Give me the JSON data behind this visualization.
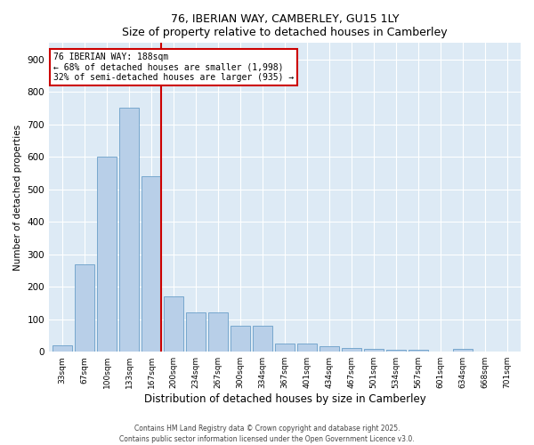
{
  "title": "76, IBERIAN WAY, CAMBERLEY, GU15 1LY",
  "subtitle": "Size of property relative to detached houses in Camberley",
  "xlabel": "Distribution of detached houses by size in Camberley",
  "ylabel": "Number of detached properties",
  "bar_color": "#b8cfe8",
  "bar_edge_color": "#6a9fc8",
  "background_color": "#ddeaf5",
  "vline_color": "#cc0000",
  "annotation_box_color": "#cc0000",
  "property_label": "76 IBERIAN WAY: 188sqm",
  "annotation_line1": "← 68% of detached houses are smaller (1,998)",
  "annotation_line2": "32% of semi-detached houses are larger (935) →",
  "categories": [
    "33sqm",
    "67sqm",
    "100sqm",
    "133sqm",
    "167sqm",
    "200sqm",
    "234sqm",
    "267sqm",
    "300sqm",
    "334sqm",
    "367sqm",
    "401sqm",
    "434sqm",
    "467sqm",
    "501sqm",
    "534sqm",
    "567sqm",
    "601sqm",
    "634sqm",
    "668sqm",
    "701sqm"
  ],
  "values": [
    20,
    270,
    600,
    750,
    540,
    170,
    120,
    120,
    80,
    80,
    25,
    25,
    18,
    12,
    10,
    5,
    5,
    0,
    8,
    0,
    0
  ],
  "ylim": [
    0,
    950
  ],
  "yticks": [
    0,
    100,
    200,
    300,
    400,
    500,
    600,
    700,
    800,
    900
  ],
  "vline_x_index": 4.43,
  "footnote1": "Contains HM Land Registry data © Crown copyright and database right 2025.",
  "footnote2": "Contains public sector information licensed under the Open Government Licence v3.0."
}
